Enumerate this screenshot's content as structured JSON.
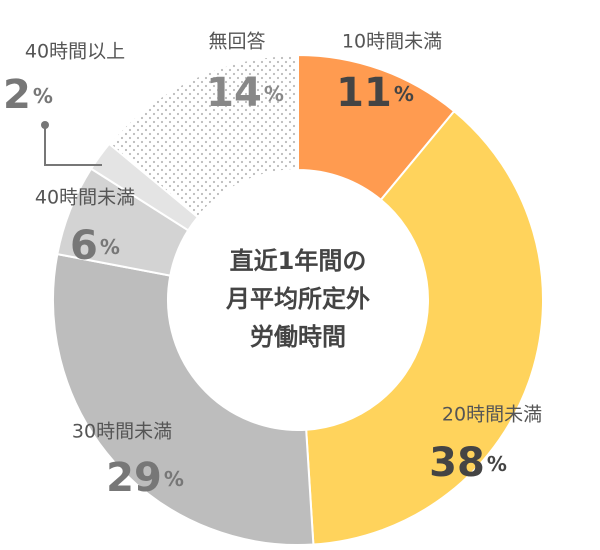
{
  "chart_data": {
    "type": "donut",
    "center_label": [
      "直近1年間の",
      "月平均所定外",
      "労働時間"
    ],
    "categories": [
      "10時間未満",
      "20時間未満",
      "30時間未満",
      "40時間未満",
      "40時間以上",
      "無回答"
    ],
    "values": [
      11,
      38,
      29,
      6,
      2,
      14
    ],
    "unit": "%",
    "colors": [
      "#ff9b50",
      "#ffd35c",
      "#bdbdbd",
      "#d3d3d3",
      "#e4e4e4",
      "#ffffff"
    ],
    "patterns": [
      null,
      null,
      null,
      null,
      null,
      "dots"
    ]
  }
}
